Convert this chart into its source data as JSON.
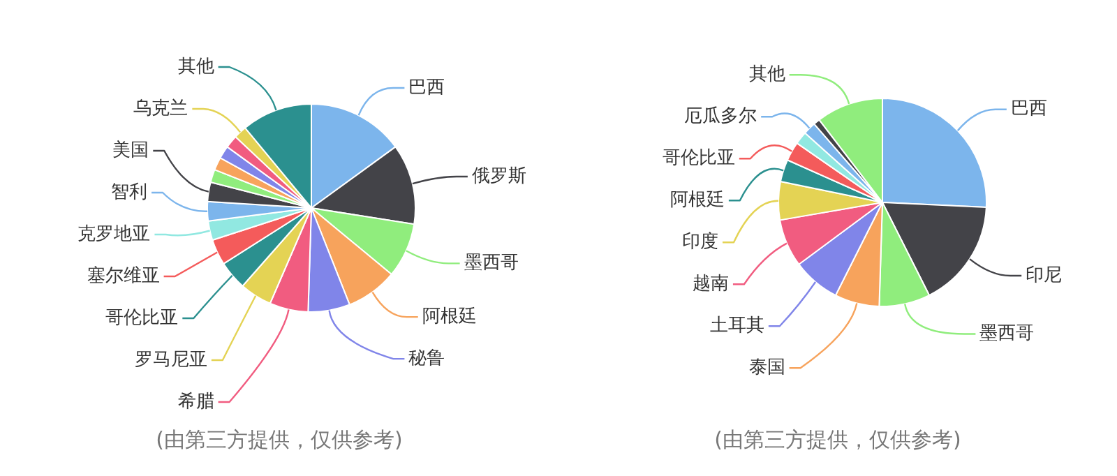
{
  "chart_data": [
    {
      "type": "pie",
      "categories": [
        "巴西",
        "俄罗斯",
        "墨西哥",
        "阿根廷",
        "秘鲁",
        "希腊",
        "罗马尼亚",
        "哥伦比亚",
        "塞尔维亚",
        "克罗地亚",
        "智利",
        "美国",
        null,
        null,
        null,
        null,
        "乌克兰",
        "其他"
      ],
      "values": [
        15,
        12.5,
        8.5,
        8,
        6.5,
        6,
        5,
        4.5,
        4,
        3,
        3,
        3,
        2,
        2,
        2,
        2,
        2,
        11
      ],
      "colors": [
        "#7cb5ec",
        "#434348",
        "#90ed7d",
        "#f7a35c",
        "#8085e9",
        "#f15c80",
        "#e4d354",
        "#2b908f",
        "#f45b5b",
        "#91e8e1",
        "#7cb5ec",
        "#434348",
        "#90ed7d",
        "#f7a35c",
        "#8085e9",
        "#f15c80",
        "#e4d354",
        "#2b908f"
      ],
      "annotations": [
        "(由第三方提供，仅供参考)"
      ]
    },
    {
      "type": "pie",
      "categories": [
        "巴西",
        "印尼",
        "墨西哥",
        "泰国",
        "土耳其",
        "越南",
        "印度",
        "阿根廷",
        "哥伦比亚",
        null,
        "厄瓜多尔",
        null,
        "其他"
      ],
      "values": [
        26,
        17,
        8,
        7,
        7.5,
        7.5,
        6,
        3.5,
        3,
        2,
        2,
        1,
        10.5
      ],
      "colors": [
        "#7cb5ec",
        "#434348",
        "#90ed7d",
        "#f7a35c",
        "#8085e9",
        "#f15c80",
        "#e4d354",
        "#2b908f",
        "#f45b5b",
        "#91e8e1",
        "#7cb5ec",
        "#434348",
        "#90ed7d"
      ],
      "annotations": [
        "(由第三方提供，仅供参考)"
      ]
    }
  ]
}
